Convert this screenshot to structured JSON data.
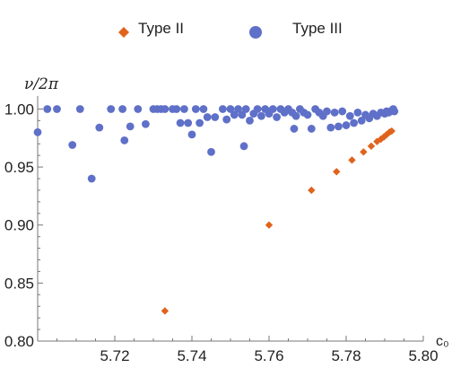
{
  "chart_data": {
    "type": "scatter",
    "xlabel": "c₀",
    "ylabel": "ν/2π",
    "xlim": [
      5.7,
      5.8
    ],
    "ylim": [
      0.8,
      1.005
    ],
    "x_ticks": [
      "5.72",
      "5.74",
      "5.76",
      "5.78",
      "5.80"
    ],
    "y_ticks": [
      "0.80",
      "0.85",
      "0.90",
      "0.95",
      "1.00"
    ],
    "legend_position": "top",
    "series": [
      {
        "name": "Type II",
        "marker": "diamond",
        "color": "#e0631c",
        "points": [
          [
            5.733,
            0.826
          ],
          [
            5.76,
            0.9
          ],
          [
            5.771,
            0.93
          ],
          [
            5.7775,
            0.946
          ],
          [
            5.7815,
            0.956
          ],
          [
            5.7845,
            0.963
          ],
          [
            5.7865,
            0.968
          ],
          [
            5.788,
            0.972
          ],
          [
            5.789,
            0.974
          ],
          [
            5.7898,
            0.976
          ],
          [
            5.7905,
            0.978
          ],
          [
            5.7912,
            0.98
          ],
          [
            5.7918,
            0.981
          ]
        ]
      },
      {
        "name": "Type III",
        "marker": "circle",
        "color": "#5f70c8",
        "points": [
          [
            5.7,
            0.98
          ],
          [
            5.7025,
            1.0
          ],
          [
            5.705,
            1.0
          ],
          [
            5.709,
            0.969
          ],
          [
            5.711,
            1.0
          ],
          [
            5.714,
            0.94
          ],
          [
            5.716,
            0.984
          ],
          [
            5.719,
            1.0
          ],
          [
            5.722,
            1.0
          ],
          [
            5.7225,
            0.973
          ],
          [
            5.724,
            0.985
          ],
          [
            5.726,
            1.0
          ],
          [
            5.728,
            0.987
          ],
          [
            5.73,
            1.0
          ],
          [
            5.731,
            1.0
          ],
          [
            5.732,
            1.0
          ],
          [
            5.733,
            1.0
          ],
          [
            5.735,
            1.0
          ],
          [
            5.736,
            1.0
          ],
          [
            5.737,
            0.988
          ],
          [
            5.738,
            1.0
          ],
          [
            5.739,
            0.988
          ],
          [
            5.74,
            0.978
          ],
          [
            5.741,
            1.0
          ],
          [
            5.742,
            0.988
          ],
          [
            5.743,
            1.0
          ],
          [
            5.744,
            0.993
          ],
          [
            5.745,
            0.963
          ],
          [
            5.746,
            0.993
          ],
          [
            5.748,
            1.0
          ],
          [
            5.749,
            0.991
          ],
          [
            5.75,
            1.0
          ],
          [
            5.751,
            0.995
          ],
          [
            5.752,
            1.0
          ],
          [
            5.753,
            0.995
          ],
          [
            5.7535,
            0.968
          ],
          [
            5.754,
            1.0
          ],
          [
            5.755,
            0.99
          ],
          [
            5.756,
            0.996
          ],
          [
            5.757,
            1.0
          ],
          [
            5.758,
            0.994
          ],
          [
            5.759,
            1.0
          ],
          [
            5.76,
            0.996
          ],
          [
            5.761,
            1.0
          ],
          [
            5.762,
            0.993
          ],
          [
            5.763,
            1.0
          ],
          [
            5.764,
            0.997
          ],
          [
            5.765,
            1.0
          ],
          [
            5.766,
            0.997
          ],
          [
            5.7665,
            0.983
          ],
          [
            5.767,
            0.994
          ],
          [
            5.768,
            1.0
          ],
          [
            5.769,
            0.997
          ],
          [
            5.77,
            0.995
          ],
          [
            5.771,
            0.983
          ],
          [
            5.772,
            1.0
          ],
          [
            5.773,
            0.997
          ],
          [
            5.774,
            0.994
          ],
          [
            5.775,
            0.998
          ],
          [
            5.776,
            0.984
          ],
          [
            5.777,
            0.997
          ],
          [
            5.778,
            0.985
          ],
          [
            5.779,
            0.998
          ],
          [
            5.78,
            0.986
          ],
          [
            5.781,
            0.994
          ],
          [
            5.782,
            0.988
          ],
          [
            5.783,
            0.997
          ],
          [
            5.784,
            0.99
          ],
          [
            5.785,
            0.995
          ],
          [
            5.786,
            0.992
          ],
          [
            5.787,
            0.996
          ],
          [
            5.788,
            0.994
          ],
          [
            5.789,
            0.997
          ],
          [
            5.79,
            0.996
          ],
          [
            5.7905,
            0.998
          ],
          [
            5.791,
            0.997
          ],
          [
            5.7915,
            0.998
          ],
          [
            5.792,
            0.999
          ],
          [
            5.7922,
            1.0
          ],
          [
            5.7925,
            0.998
          ]
        ]
      }
    ]
  }
}
